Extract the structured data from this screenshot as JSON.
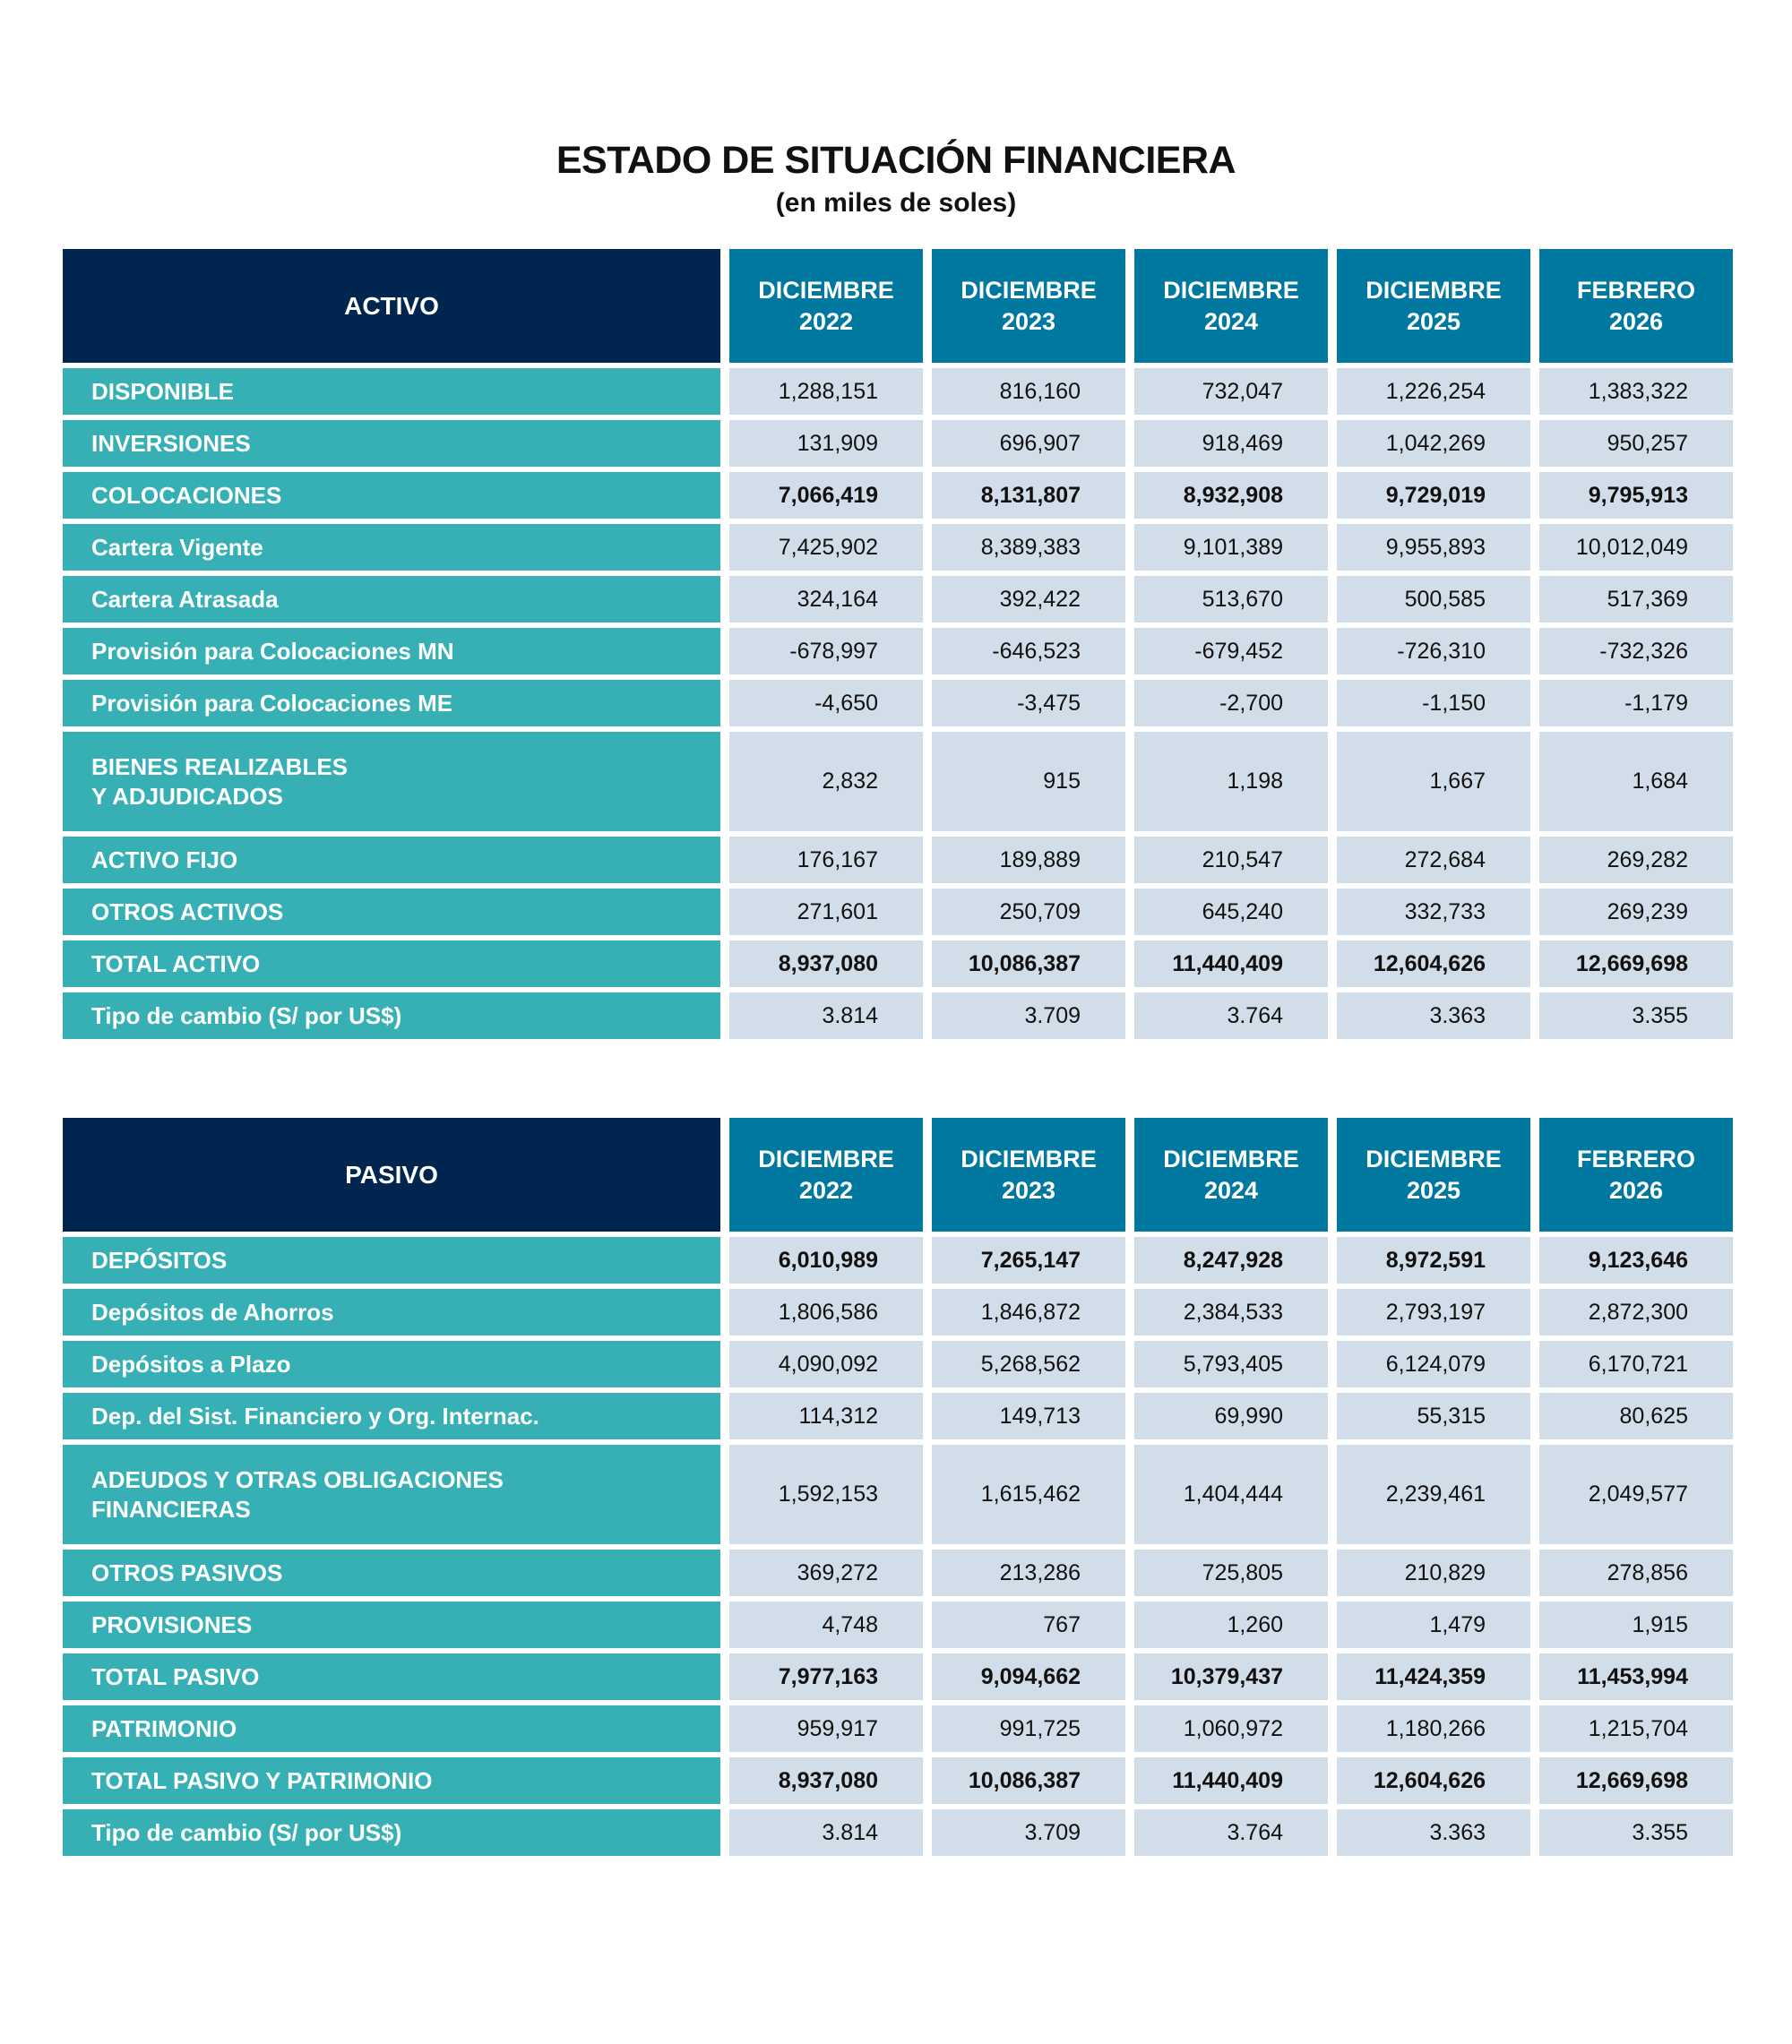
{
  "title": "ESTADO DE SITUACIÓN FINANCIERA",
  "subtitle": "(en miles de soles)",
  "colors": {
    "header_main": "#00264f",
    "header_period": "#0078a0",
    "label": "#36b0b5",
    "cell": "#d1dde8"
  },
  "tables": [
    {
      "heading": "ACTIVO",
      "periods": [
        [
          "DICIEMBRE",
          "2022"
        ],
        [
          "DICIEMBRE",
          "2023"
        ],
        [
          "DICIEMBRE",
          "2024"
        ],
        [
          "DICIEMBRE",
          "2025"
        ],
        [
          "FEBRERO",
          "2026"
        ]
      ],
      "rows": [
        {
          "label": "DISPONIBLE",
          "values": [
            "1,288,151",
            "816,160",
            "732,047",
            "1,226,254",
            "1,383,322"
          ]
        },
        {
          "label": "INVERSIONES",
          "values": [
            "131,909",
            "696,907",
            "918,469",
            "1,042,269",
            "950,257"
          ]
        },
        {
          "label": "COLOCACIONES",
          "bold": true,
          "values": [
            "7,066,419",
            "8,131,807",
            "8,932,908",
            "9,729,019",
            "9,795,913"
          ]
        },
        {
          "label": "Cartera Vigente",
          "values": [
            "7,425,902",
            "8,389,383",
            "9,101,389",
            "9,955,893",
            "10,012,049"
          ]
        },
        {
          "label": "Cartera Atrasada",
          "values": [
            "324,164",
            "392,422",
            "513,670",
            "500,585",
            "517,369"
          ]
        },
        {
          "label": "Provisión para Colocaciones MN",
          "values": [
            "-678,997",
            "-646,523",
            "-679,452",
            "-726,310",
            "-732,326"
          ]
        },
        {
          "label": "Provisión para Colocaciones ME",
          "values": [
            "-4,650",
            "-3,475",
            "-2,700",
            "-1,150",
            "-1,179"
          ]
        },
        {
          "label": "BIENES REALIZABLES",
          "label2": "Y ADJUDICADOS",
          "tall": true,
          "values": [
            "2,832",
            "915",
            "1,198",
            "1,667",
            "1,684"
          ]
        },
        {
          "label": "ACTIVO FIJO",
          "values": [
            "176,167",
            "189,889",
            "210,547",
            "272,684",
            "269,282"
          ]
        },
        {
          "label": "OTROS ACTIVOS",
          "values": [
            "271,601",
            "250,709",
            "645,240",
            "332,733",
            "269,239"
          ]
        },
        {
          "label": "TOTAL ACTIVO",
          "bold": true,
          "values": [
            "8,937,080",
            "10,086,387",
            "11,440,409",
            "12,604,626",
            "12,669,698"
          ]
        },
        {
          "label": "Tipo de cambio (S/ por US$)",
          "values": [
            "3.814",
            "3.709",
            "3.764",
            "3.363",
            "3.355"
          ]
        }
      ]
    },
    {
      "heading": "PASIVO",
      "periods": [
        [
          "DICIEMBRE",
          "2022"
        ],
        [
          "DICIEMBRE",
          "2023"
        ],
        [
          "DICIEMBRE",
          "2024"
        ],
        [
          "DICIEMBRE",
          "2025"
        ],
        [
          "FEBRERO",
          "2026"
        ]
      ],
      "rows": [
        {
          "label": "DEPÓSITOS",
          "bold": true,
          "values": [
            "6,010,989",
            "7,265,147",
            "8,247,928",
            "8,972,591",
            "9,123,646"
          ]
        },
        {
          "label": "Depósitos de Ahorros",
          "values": [
            "1,806,586",
            "1,846,872",
            "2,384,533",
            "2,793,197",
            "2,872,300"
          ]
        },
        {
          "label": "Depósitos a Plazo",
          "values": [
            "4,090,092",
            "5,268,562",
            "5,793,405",
            "6,124,079",
            "6,170,721"
          ]
        },
        {
          "label": "Dep. del Sist. Financiero y Org. Internac.",
          "values": [
            "114,312",
            "149,713",
            "69,990",
            "55,315",
            "80,625"
          ]
        },
        {
          "label": "ADEUDOS Y OTRAS OBLIGACIONES",
          "label2": "FINANCIERAS",
          "tall": true,
          "values": [
            "1,592,153",
            "1,615,462",
            "1,404,444",
            "2,239,461",
            "2,049,577"
          ]
        },
        {
          "label": "OTROS PASIVOS",
          "values": [
            "369,272",
            "213,286",
            "725,805",
            "210,829",
            "278,856"
          ]
        },
        {
          "label": "PROVISIONES",
          "values": [
            "4,748",
            "767",
            "1,260",
            "1,479",
            "1,915"
          ]
        },
        {
          "label": "TOTAL PASIVO",
          "bold": true,
          "values": [
            "7,977,163",
            "9,094,662",
            "10,379,437",
            "11,424,359",
            "11,453,994"
          ]
        },
        {
          "label": "PATRIMONIO",
          "values": [
            "959,917",
            "991,725",
            "1,060,972",
            "1,180,266",
            "1,215,704"
          ]
        },
        {
          "label": "TOTAL PASIVO Y PATRIMONIO",
          "bold": true,
          "values": [
            "8,937,080",
            "10,086,387",
            "11,440,409",
            "12,604,626",
            "12,669,698"
          ]
        },
        {
          "label": "Tipo de cambio (S/ por US$)",
          "values": [
            "3.814",
            "3.709",
            "3.764",
            "3.363",
            "3.355"
          ]
        }
      ]
    }
  ]
}
